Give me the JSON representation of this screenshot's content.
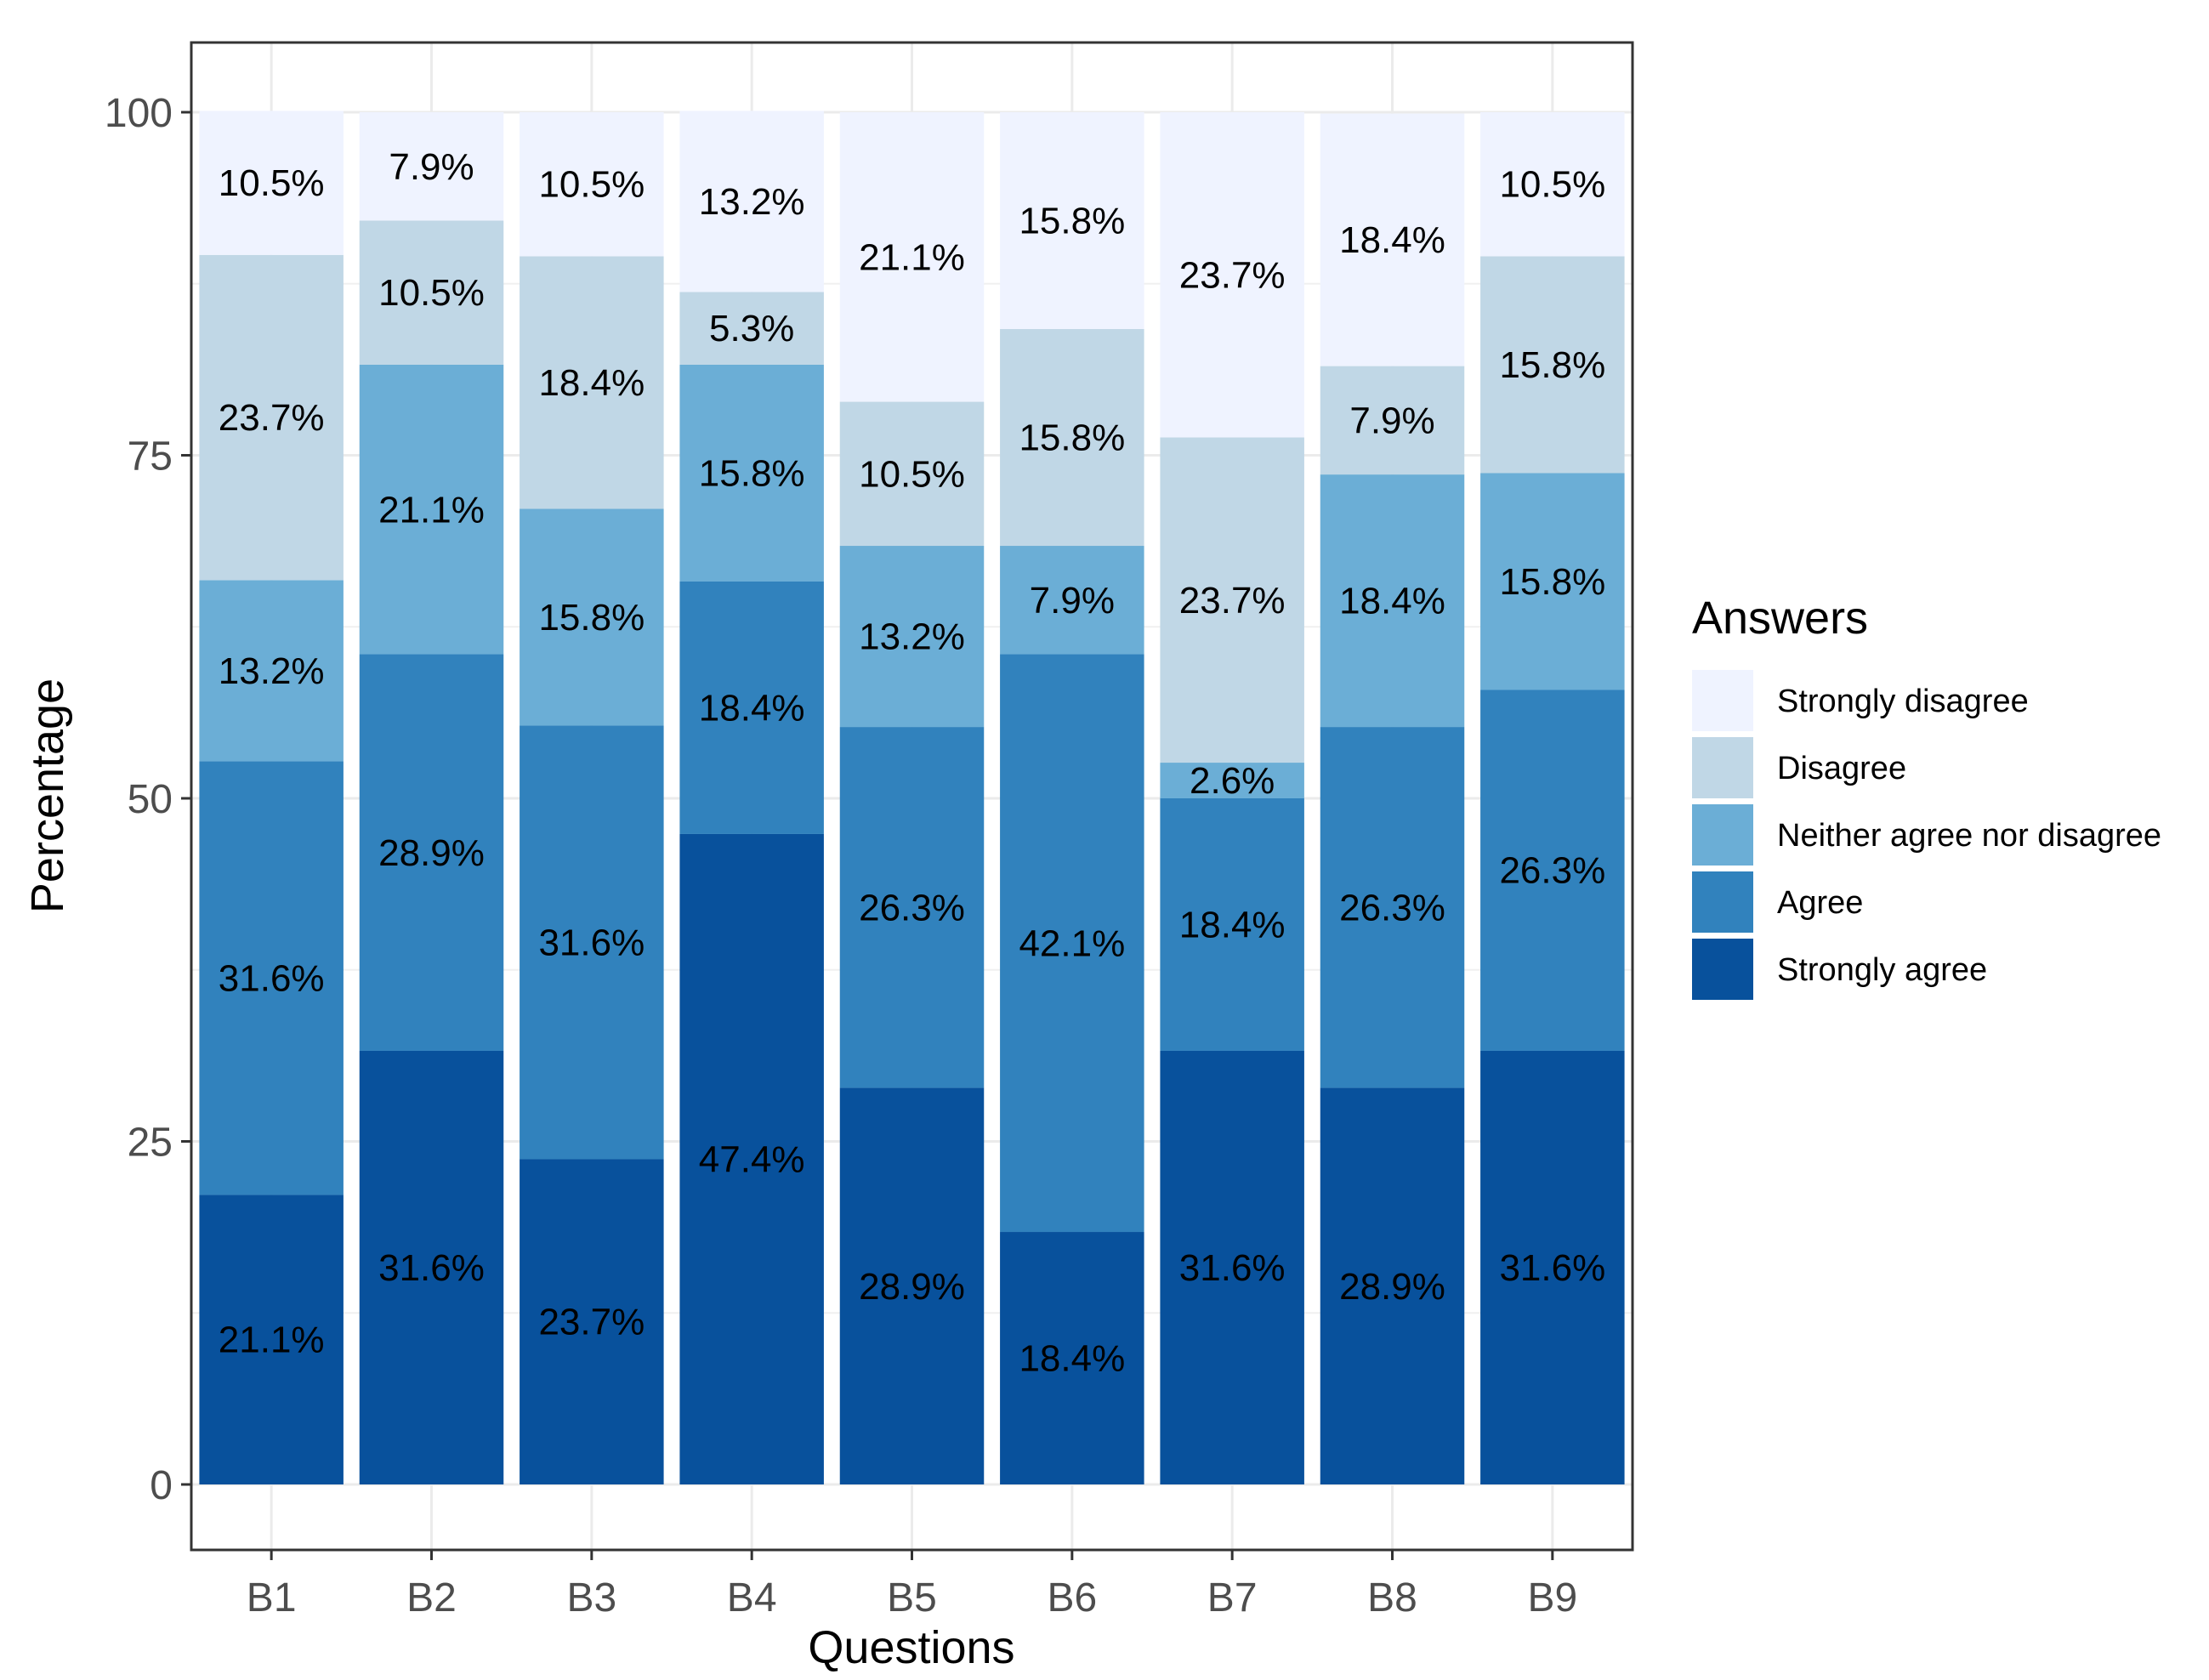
{
  "chart_data": {
    "type": "bar",
    "stacked": true,
    "xlabel": "Questions",
    "ylabel": "Percentage",
    "ylim": [
      -5,
      105
    ],
    "yticks": [
      0,
      25,
      50,
      75,
      100
    ],
    "categories": [
      "B1",
      "B2",
      "B3",
      "B4",
      "B5",
      "B6",
      "B7",
      "B8",
      "B9"
    ],
    "legend": {
      "title": "Answers",
      "placement": "right",
      "order": [
        "Strongly disagree",
        "Disagree",
        "Neither agree nor disagree",
        "Agree",
        "Strongly agree"
      ]
    },
    "series": [
      {
        "name": "Strongly agree",
        "color": "#08519c",
        "values": [
          21.1,
          31.6,
          23.7,
          47.4,
          28.9,
          18.4,
          31.6,
          28.9,
          31.6
        ],
        "labels": [
          "21.1%",
          "31.6%",
          "23.7%",
          "47.4%",
          "28.9%",
          "18.4%",
          "31.6%",
          "28.9%",
          "31.6%"
        ]
      },
      {
        "name": "Agree",
        "color": "#3182bd",
        "values": [
          31.6,
          28.9,
          31.6,
          18.4,
          26.3,
          42.1,
          18.4,
          26.3,
          26.3
        ],
        "labels": [
          "31.6%",
          "28.9%",
          "31.6%",
          "18.4%",
          "26.3%",
          "42.1%",
          "18.4%",
          "26.3%",
          "26.3%"
        ]
      },
      {
        "name": "Neither agree nor disagree",
        "color": "#6baed6",
        "values": [
          13.2,
          21.1,
          15.8,
          15.8,
          13.2,
          7.9,
          2.6,
          18.4,
          15.8
        ],
        "labels": [
          "13.2%",
          "21.1%",
          "15.8%",
          "15.8%",
          "13.2%",
          "7.9%",
          "2.6%",
          "18.4%",
          "15.8%"
        ]
      },
      {
        "name": "Disagree",
        "color": "#c0d7e6",
        "values": [
          23.7,
          10.5,
          18.4,
          5.3,
          10.5,
          15.8,
          23.7,
          7.9,
          15.8
        ],
        "labels": [
          "23.7%",
          "10.5%",
          "18.4%",
          "5.3%",
          "10.5%",
          "15.8%",
          "23.7%",
          "7.9%",
          "15.8%"
        ]
      },
      {
        "name": "Strongly disagree",
        "color": "#eff3ff",
        "values": [
          10.5,
          7.9,
          10.5,
          13.2,
          21.1,
          15.8,
          23.7,
          18.4,
          10.5
        ],
        "labels": [
          "10.5%",
          "7.9%",
          "10.5%",
          "13.2%",
          "21.1%",
          "15.8%",
          "23.7%",
          "18.4%",
          "10.5%"
        ]
      }
    ]
  }
}
